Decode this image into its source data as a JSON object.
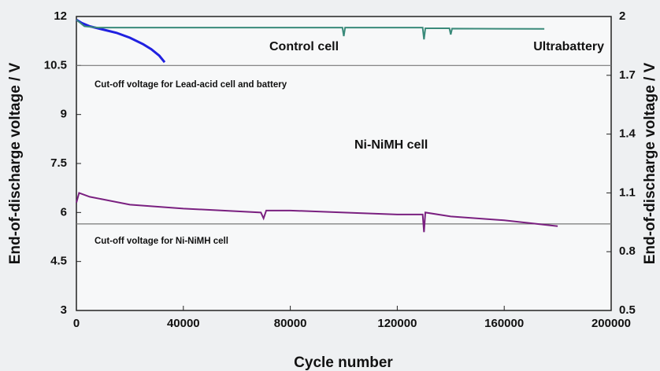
{
  "chart_data": {
    "type": "line",
    "xlabel": "Cycle number",
    "ylabel": "End-of-discharge voltage / V",
    "y2label": "End-of-discharge voltage / V",
    "xlim": [
      0,
      200000
    ],
    "xticks": [
      0,
      40000,
      80000,
      120000,
      160000,
      200000
    ],
    "ylim": [
      3,
      12
    ],
    "yticks": [
      3,
      4.5,
      6,
      7.5,
      9,
      10.5,
      12
    ],
    "y2lim": [
      0.5,
      2
    ],
    "y2ticks": [
      0.5,
      0.8,
      1.1,
      1.4,
      1.7,
      2
    ],
    "series": [
      {
        "name": "Control cell",
        "color": "#2020e0",
        "x": [
          0,
          2000,
          5000,
          10000,
          15000,
          20000,
          25000,
          28000,
          31000,
          33000
        ],
        "values": [
          11.9,
          11.8,
          11.7,
          11.6,
          11.5,
          11.35,
          11.15,
          11.0,
          10.8,
          10.6
        ]
      },
      {
        "name": "Ultrabattery",
        "color": "#3a8a7a",
        "x": [
          0,
          3000,
          8000,
          99500,
          100000,
          100500,
          129500,
          130000,
          130500,
          139500,
          140000,
          140500,
          175000
        ],
        "values": [
          11.9,
          11.7,
          11.66,
          11.66,
          11.4,
          11.66,
          11.66,
          11.3,
          11.64,
          11.64,
          11.45,
          11.63,
          11.62
        ]
      },
      {
        "name": "Ni-NiMH cell",
        "color": "#7a2080",
        "axis": "y2",
        "x": [
          0,
          1000,
          5000,
          20000,
          40000,
          69000,
          70000,
          71000,
          80000,
          100000,
          120000,
          129500,
          130000,
          130500,
          140000,
          160000,
          180000
        ],
        "values": [
          1.05,
          1.1,
          1.08,
          1.04,
          1.02,
          1.0,
          0.97,
          1.01,
          1.01,
          1.0,
          0.99,
          0.99,
          0.9,
          1.0,
          0.98,
          0.96,
          0.93
        ]
      }
    ],
    "reference_lines": [
      {
        "value": 10.5,
        "label": "Cut-off voltage for Lead-acid cell and battery"
      },
      {
        "value": 5.65,
        "label": "Cut-off voltage for Ni-NiMH cell"
      }
    ]
  }
}
